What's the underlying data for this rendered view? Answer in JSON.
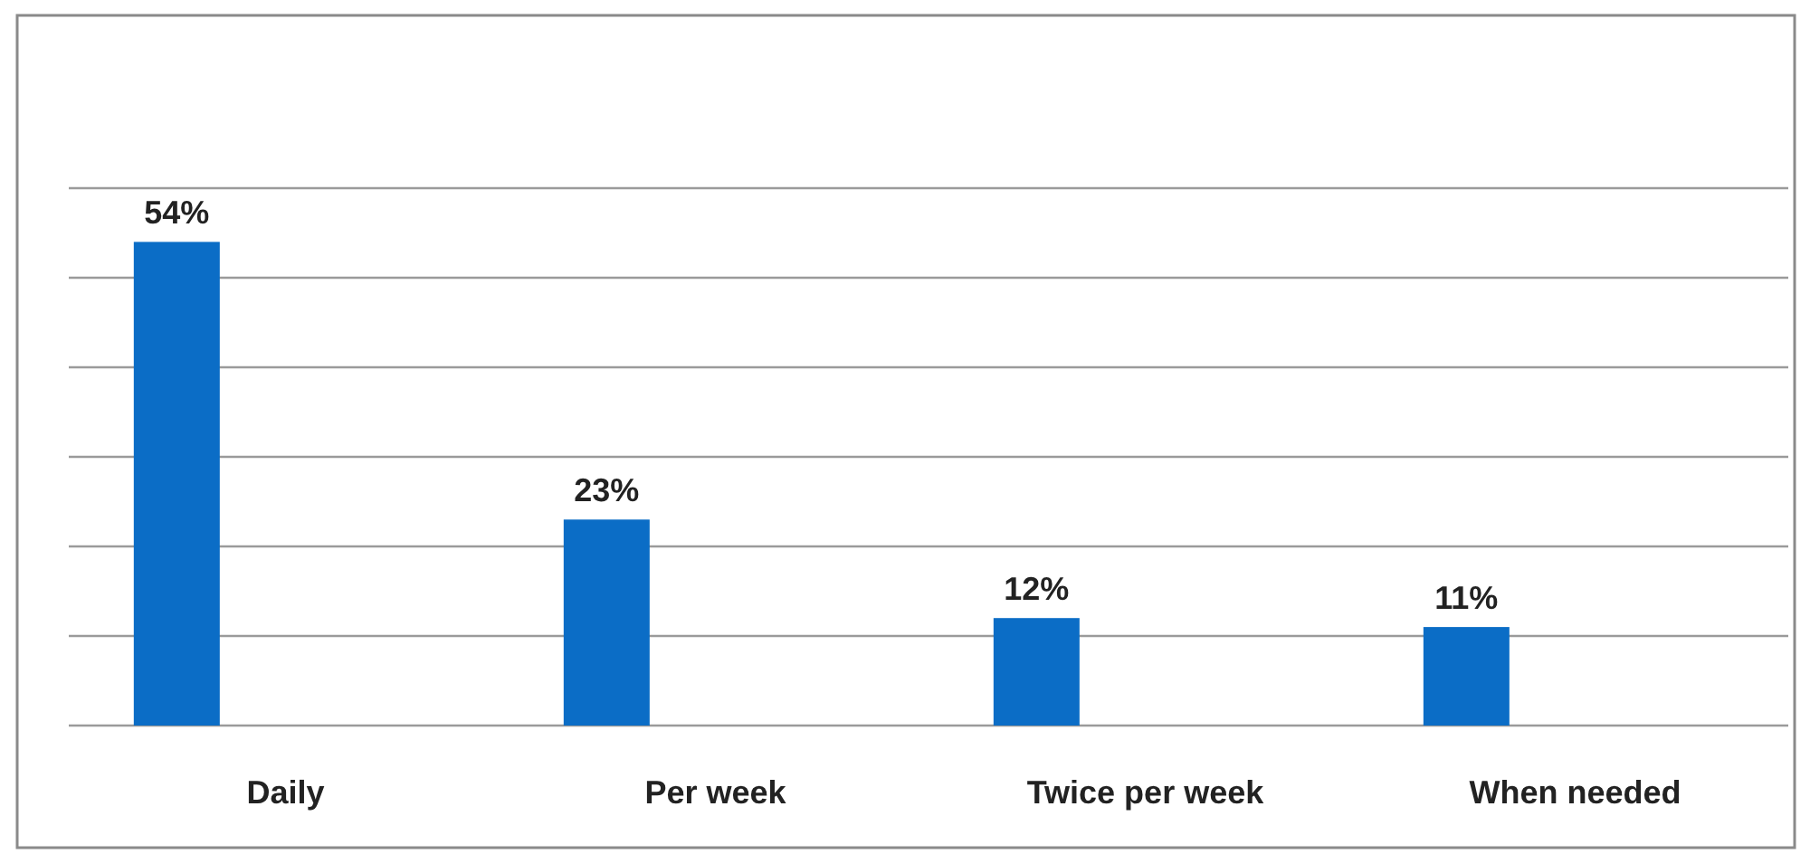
{
  "chart_data": {
    "type": "bar",
    "categories": [
      "Daily",
      "Per week",
      "Twice per week",
      "When needed"
    ],
    "values": [
      54,
      23,
      12,
      11
    ],
    "value_labels": [
      "54%",
      "23%",
      "12%",
      "11%"
    ],
    "color": "#0b6dc6",
    "ylim": [
      0,
      60
    ],
    "yticks": [
      {
        "value": 0,
        "label": null
      },
      {
        "value": 10,
        "label": null
      },
      {
        "value": 20,
        "label": null
      },
      {
        "value": 30,
        "label": null
      },
      {
        "value": 40,
        "label": null
      },
      {
        "value": 50,
        "label": null
      },
      {
        "value": 60,
        "label": null
      }
    ],
    "grid": "y",
    "tick_labels": "x"
  }
}
